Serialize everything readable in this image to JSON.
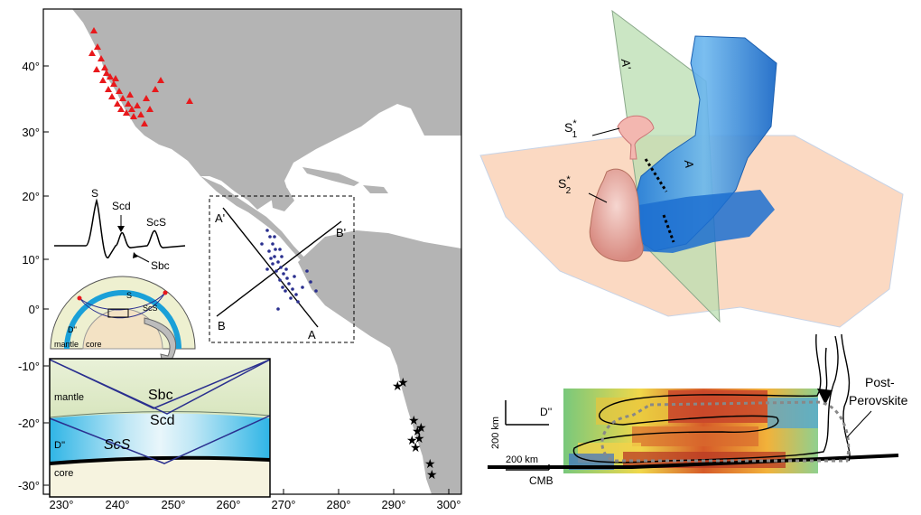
{
  "map": {
    "lat_ticks": [
      "40°",
      "30°",
      "20°",
      "10°",
      "0°",
      "-10°",
      "-20°",
      "-30°"
    ],
    "lon_ticks": [
      "230°",
      "240°",
      "250°",
      "260°",
      "270°",
      "280°",
      "290°",
      "300°"
    ],
    "profile_labels": {
      "a_prime": "A'",
      "b_prime": "B'",
      "a": "A",
      "b": "B"
    },
    "colors": {
      "ocean": "#ffffff",
      "land": "#b4b4b4",
      "stations": "#e8191c",
      "events_blue": "#2a2f8f",
      "events_black": "#000000"
    }
  },
  "waveform": {
    "S": "S",
    "Scd": "Scd",
    "ScS": "ScS",
    "Sbc": "Sbc"
  },
  "earth_section": {
    "ray_s": "S",
    "ray_scs": "ScS",
    "d_layer": "D''",
    "mantle": "mantle",
    "core": "core"
  },
  "zoom_box": {
    "mantle": "mantle",
    "sbc": "Sbc",
    "scd": "Scd",
    "scs": "ScS",
    "d_layer": "D''",
    "core": "core"
  },
  "block3d": {
    "plane_a_prime": "A'",
    "plane_a": "A",
    "s1_base": "S",
    "s1_star": "*",
    "s1_sub": "1",
    "s2_base": "S",
    "s2_star": "*",
    "s2_sub": "2"
  },
  "tomo": {
    "d_layer": "D''",
    "scale_v": "200 km",
    "scale_h": "200 km",
    "cmb": "CMB",
    "post_line1": "Post-",
    "post_line2": "Perovskite"
  }
}
